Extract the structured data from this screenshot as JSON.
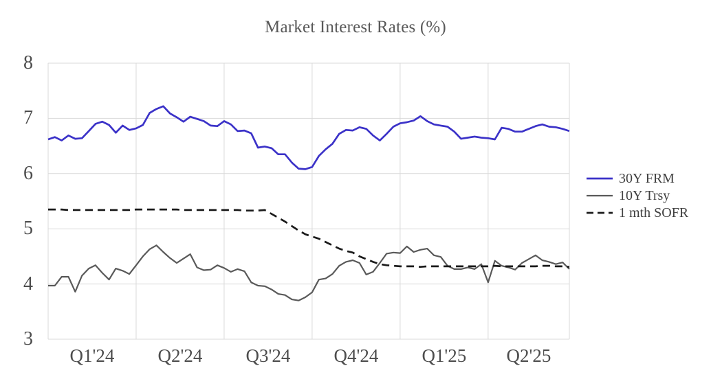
{
  "chart_data": {
    "type": "line",
    "title": "Market Interest Rates (%)",
    "xlabel": "",
    "ylabel": "",
    "ylim": [
      3,
      8
    ],
    "y_ticks": [
      8,
      7,
      6,
      5,
      4,
      3
    ],
    "x_tick_labels": [
      "Q1'24",
      "Q2'24",
      "Q3'24",
      "Q4'24",
      "Q1'25",
      "Q2'25"
    ],
    "x_description": "weekly observations, Q1 2024 through end of Q2 2025 (13 points per quarter)",
    "grid": true,
    "legend_position": "right",
    "series": [
      {
        "name": "30Y FRM",
        "style": "solid",
        "color": "#3b32c8",
        "values": [
          6.62,
          6.66,
          6.6,
          6.69,
          6.63,
          6.64,
          6.77,
          6.9,
          6.94,
          6.88,
          6.74,
          6.87,
          6.79,
          6.82,
          6.88,
          7.1,
          7.17,
          7.22,
          7.09,
          7.02,
          6.94,
          7.03,
          6.99,
          6.95,
          6.87,
          6.86,
          6.95,
          6.89,
          6.77,
          6.78,
          6.73,
          6.47,
          6.49,
          6.46,
          6.35,
          6.35,
          6.2,
          6.09,
          6.08,
          6.12,
          6.32,
          6.44,
          6.54,
          6.72,
          6.79,
          6.78,
          6.84,
          6.81,
          6.69,
          6.6,
          6.72,
          6.85,
          6.91,
          6.93,
          6.96,
          7.04,
          6.95,
          6.89,
          6.87,
          6.85,
          6.76,
          6.63,
          6.65,
          6.67,
          6.65,
          6.64,
          6.62,
          6.83,
          6.81,
          6.76,
          6.76,
          6.81,
          6.86,
          6.89,
          6.85,
          6.84,
          6.81,
          6.77
        ]
      },
      {
        "name": "10Y Trsy",
        "style": "solid",
        "color": "#595959",
        "values": [
          3.97,
          3.97,
          4.13,
          4.13,
          3.86,
          4.15,
          4.28,
          4.34,
          4.2,
          4.08,
          4.28,
          4.24,
          4.18,
          4.34,
          4.5,
          4.63,
          4.7,
          4.58,
          4.47,
          4.38,
          4.46,
          4.54,
          4.3,
          4.25,
          4.26,
          4.34,
          4.29,
          4.22,
          4.27,
          4.23,
          4.03,
          3.97,
          3.96,
          3.9,
          3.82,
          3.8,
          3.72,
          3.7,
          3.76,
          3.85,
          4.08,
          4.1,
          4.18,
          4.33,
          4.4,
          4.43,
          4.38,
          4.17,
          4.22,
          4.38,
          4.55,
          4.57,
          4.56,
          4.68,
          4.58,
          4.62,
          4.64,
          4.52,
          4.49,
          4.33,
          4.27,
          4.27,
          4.3,
          4.27,
          4.36,
          4.03,
          4.42,
          4.33,
          4.3,
          4.26,
          4.38,
          4.45,
          4.52,
          4.43,
          4.4,
          4.36,
          4.39,
          4.27
        ]
      },
      {
        "name": "1 mth SOFR",
        "style": "dashed",
        "color": "#1a1a1a",
        "values": [
          5.35,
          5.35,
          5.35,
          5.34,
          5.34,
          5.34,
          5.34,
          5.34,
          5.34,
          5.34,
          5.34,
          5.34,
          5.34,
          5.35,
          5.35,
          5.35,
          5.35,
          5.35,
          5.35,
          5.35,
          5.34,
          5.34,
          5.34,
          5.34,
          5.34,
          5.34,
          5.34,
          5.34,
          5.34,
          5.33,
          5.33,
          5.33,
          5.34,
          5.27,
          5.2,
          5.13,
          5.05,
          4.97,
          4.9,
          4.86,
          4.82,
          4.76,
          4.7,
          4.64,
          4.6,
          4.57,
          4.5,
          4.45,
          4.4,
          4.36,
          4.34,
          4.33,
          4.32,
          4.32,
          4.32,
          4.31,
          4.32,
          4.32,
          4.32,
          4.32,
          4.32,
          4.32,
          4.32,
          4.32,
          4.32,
          4.32,
          4.33,
          4.32,
          4.32,
          4.32,
          4.32,
          4.32,
          4.32,
          4.33,
          4.33,
          4.32,
          4.32,
          4.31
        ]
      }
    ],
    "colors": {
      "grid": "#d9d9d9",
      "title_text": "#595959",
      "axis_text": "#4d4d4d",
      "legend_text": "#404040",
      "background": "#ffffff"
    }
  }
}
